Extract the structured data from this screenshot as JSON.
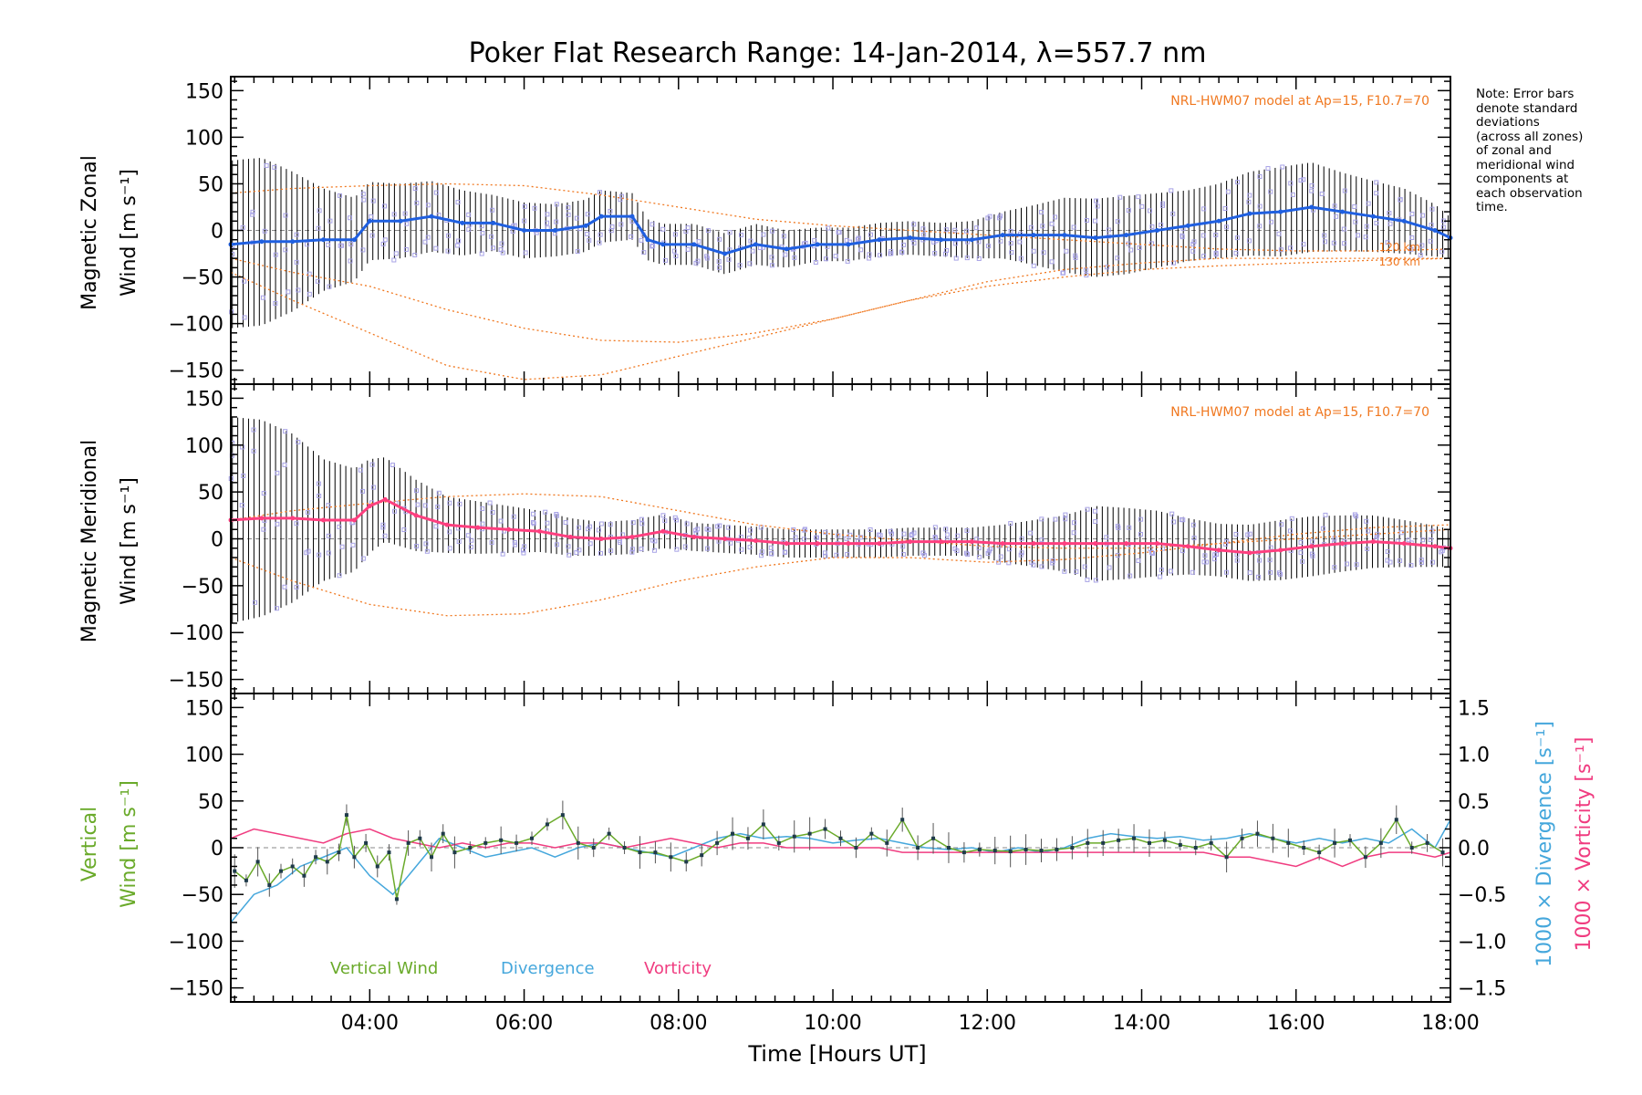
{
  "title": "Poker Flat Research Range: 14-Jan-2014, λ=557.7 nm",
  "note_lines": [
    "Note: Error bars",
    "denote standard",
    "deviations",
    "(across all zones)",
    "of zonal and",
    "meridional wind",
    "components at",
    "each observation",
    "time."
  ],
  "xlabel": "Time [Hours UT]",
  "colors": {
    "zonal_mean": "#1f5fe0",
    "meridional_mean": "#ff3f7f",
    "vertical": "#6aaa2a",
    "divergence": "#45a7dc",
    "vorticity": "#f03c80",
    "model": "#f07820",
    "scatter": "#a8a3e6",
    "errorbar": "#000000"
  },
  "chart_data": [
    {
      "type": "line",
      "panel": "zonal",
      "title": "",
      "ylabel_line1": "Magnetic Zonal",
      "ylabel_line2": "Wind [m s⁻¹]",
      "xlim": [
        2.2,
        18.0
      ],
      "ylim": [
        -165,
        165
      ],
      "x_ticks": [
        4,
        6,
        8,
        10,
        12,
        14,
        16,
        18
      ],
      "x_tick_labels": [
        "04:00",
        "06:00",
        "08:00",
        "10:00",
        "12:00",
        "14:00",
        "16:00",
        "18:00"
      ],
      "y_ticks": [
        -150,
        -100,
        -50,
        0,
        50,
        100,
        150
      ],
      "y_tick_labels": [
        "−150",
        "−100",
        "−50",
        "0",
        "50",
        "100",
        "150"
      ],
      "annotation": "NRL-HWM07 model at Ap=15, F10.7=70",
      "model_curve_labels": [
        "120 km",
        "130 km"
      ],
      "series": [
        {
          "name": "",
          "role": "mean",
          "x": [
            2.2,
            2.6,
            3.0,
            3.4,
            3.8,
            4.0,
            4.4,
            4.8,
            5.2,
            5.6,
            6.0,
            6.4,
            6.8,
            7.0,
            7.4,
            7.6,
            7.8,
            8.2,
            8.6,
            9.0,
            9.4,
            9.8,
            10.2,
            10.6,
            11.0,
            11.4,
            11.8,
            12.2,
            12.6,
            13.0,
            13.4,
            13.8,
            14.2,
            14.6,
            15.0,
            15.4,
            15.8,
            16.2,
            16.6,
            17.0,
            17.4,
            17.8,
            18.0
          ],
          "y": [
            -15,
            -12,
            -12,
            -10,
            -10,
            10,
            10,
            15,
            8,
            8,
            0,
            0,
            5,
            15,
            15,
            -10,
            -15,
            -15,
            -25,
            -15,
            -20,
            -15,
            -15,
            -10,
            -8,
            -10,
            -10,
            -5,
            -5,
            -5,
            -8,
            -5,
            0,
            5,
            10,
            18,
            20,
            25,
            20,
            15,
            10,
            0,
            -8
          ],
          "spread": [
            90,
            90,
            75,
            55,
            45,
            42,
            40,
            38,
            35,
            30,
            30,
            28,
            28,
            28,
            25,
            22,
            22,
            22,
            22,
            22,
            20,
            18,
            18,
            18,
            18,
            18,
            20,
            25,
            32,
            40,
            42,
            42,
            40,
            38,
            40,
            45,
            48,
            48,
            42,
            38,
            35,
            28,
            22
          ]
        },
        {
          "name": "",
          "role": "model-120km",
          "x": [
            2.2,
            3.0,
            4.0,
            5.0,
            6.0,
            7.0,
            8.0,
            9.0,
            10.0,
            11.0,
            12.0,
            13.0,
            14.0,
            15.0,
            16.0,
            17.0,
            18.0
          ],
          "y": [
            -30,
            -45,
            -60,
            -85,
            -105,
            -118,
            -120,
            -110,
            -95,
            -75,
            -55,
            -42,
            -35,
            -30,
            -30,
            -30,
            -30
          ]
        },
        {
          "name": "",
          "role": "model-130km",
          "x": [
            2.2,
            3.0,
            4.0,
            5.0,
            6.0,
            7.0,
            8.0,
            9.0,
            10.0,
            11.0,
            12.0,
            13.0,
            14.0,
            15.0,
            16.0,
            17.0,
            18.0
          ],
          "y": [
            -45,
            -75,
            -110,
            -145,
            -160,
            -155,
            -135,
            -115,
            -95,
            -75,
            -60,
            -50,
            -42,
            -38,
            -35,
            -32,
            -30
          ]
        },
        {
          "name": "",
          "role": "model-upper",
          "x": [
            2.2,
            3.0,
            4.0,
            5.0,
            6.0,
            7.0,
            8.0,
            9.0,
            10.0,
            11.0,
            12.0,
            13.0,
            14.0,
            15.0,
            16.0,
            17.0,
            18.0
          ],
          "y": [
            40,
            45,
            48,
            50,
            48,
            38,
            25,
            12,
            5,
            0,
            -5,
            -10,
            -15,
            -20,
            -22,
            -22,
            -20
          ]
        }
      ]
    },
    {
      "type": "line",
      "panel": "meridional",
      "title": "",
      "ylabel_line1": "Magnetic Meridional",
      "ylabel_line2": "Wind [m s⁻¹]",
      "xlim": [
        2.2,
        18.0
      ],
      "ylim": [
        -165,
        165
      ],
      "y_ticks": [
        -150,
        -100,
        -50,
        0,
        50,
        100,
        150
      ],
      "y_tick_labels": [
        "−150",
        "−100",
        "−50",
        "0",
        "50",
        "100",
        "150"
      ],
      "annotation": "NRL-HWM07 model at Ap=15, F10.7=70",
      "series": [
        {
          "name": "",
          "role": "mean",
          "x": [
            2.2,
            2.6,
            3.0,
            3.4,
            3.8,
            4.0,
            4.2,
            4.6,
            5.0,
            5.4,
            5.8,
            6.2,
            6.6,
            7.0,
            7.4,
            7.8,
            8.2,
            8.6,
            9.0,
            9.4,
            9.8,
            10.2,
            10.6,
            11.0,
            11.4,
            11.8,
            12.2,
            12.6,
            13.0,
            13.4,
            13.8,
            14.2,
            14.6,
            15.0,
            15.4,
            15.8,
            16.2,
            16.6,
            17.0,
            17.4,
            17.8,
            18.0
          ],
          "y": [
            20,
            22,
            22,
            20,
            20,
            35,
            42,
            25,
            15,
            12,
            10,
            8,
            2,
            0,
            2,
            8,
            2,
            0,
            -2,
            -5,
            -5,
            -5,
            -5,
            -3,
            -3,
            -3,
            -5,
            -5,
            -5,
            -5,
            -5,
            -5,
            -8,
            -12,
            -15,
            -12,
            -8,
            -5,
            -3,
            -5,
            -8,
            -10
          ],
          "spread": [
            110,
            105,
            90,
            65,
            55,
            50,
            45,
            38,
            30,
            28,
            25,
            22,
            20,
            18,
            18,
            18,
            15,
            15,
            15,
            15,
            15,
            15,
            15,
            15,
            15,
            15,
            20,
            25,
            30,
            40,
            38,
            35,
            30,
            28,
            30,
            32,
            32,
            30,
            28,
            25,
            22,
            20
          ]
        },
        {
          "name": "",
          "role": "model-lower",
          "x": [
            2.2,
            3.0,
            4.0,
            5.0,
            6.0,
            7.0,
            8.0,
            9.0,
            10.0,
            11.0,
            12.0,
            13.0,
            14.0,
            15.0,
            16.0,
            17.0,
            18.0
          ],
          "y": [
            -20,
            -45,
            -70,
            -82,
            -80,
            -65,
            -45,
            -30,
            -20,
            -20,
            -25,
            -22,
            -15,
            -5,
            5,
            12,
            15
          ]
        },
        {
          "name": "",
          "role": "model-upper",
          "x": [
            2.2,
            3.0,
            4.0,
            5.0,
            6.0,
            7.0,
            8.0,
            9.0,
            10.0,
            11.0,
            12.0,
            13.0,
            14.0,
            15.0,
            16.0,
            17.0,
            18.0
          ],
          "y": [
            20,
            30,
            38,
            45,
            48,
            45,
            30,
            15,
            5,
            -2,
            -8,
            -10,
            -10,
            -5,
            0,
            5,
            10
          ]
        }
      ]
    },
    {
      "type": "line",
      "panel": "vertical",
      "title": "",
      "ylabel_line1": "Vertical",
      "ylabel_line2_a": "Wind ",
      "ylabel_line2_b": "[m s⁻¹]",
      "right_label_div_a": "1000 × Divergence ",
      "right_label_div_b": "[s⁻¹]",
      "right_label_vort_a": "1000 × Vorticity ",
      "right_label_vort_b": "[s⁻¹]",
      "xlim": [
        2.2,
        18.0
      ],
      "ylim": [
        -165,
        165
      ],
      "y2lim": [
        -1.65,
        1.65
      ],
      "y_ticks": [
        -150,
        -100,
        -50,
        0,
        50,
        100,
        150
      ],
      "y_tick_labels": [
        "−150",
        "−100",
        "−50",
        "0",
        "50",
        "100",
        "150"
      ],
      "y2_ticks": [
        -1.5,
        -1.0,
        -0.5,
        0.0,
        0.5,
        1.0,
        1.5
      ],
      "y2_tick_labels": [
        "−1.5",
        "−1.0",
        "−0.5",
        "0.0",
        "0.5",
        "1.0",
        "1.5"
      ],
      "legend": [
        "Vertical Wind",
        "Divergence",
        "Vorticity"
      ],
      "series": [
        {
          "name": "Vertical Wind",
          "axis": "left",
          "x": [
            2.25,
            2.4,
            2.55,
            2.7,
            2.85,
            3.0,
            3.15,
            3.3,
            3.45,
            3.6,
            3.7,
            3.8,
            3.95,
            4.1,
            4.25,
            4.35,
            4.5,
            4.65,
            4.8,
            4.95,
            5.1,
            5.3,
            5.5,
            5.7,
            5.9,
            6.1,
            6.3,
            6.5,
            6.7,
            6.9,
            7.1,
            7.3,
            7.5,
            7.7,
            7.9,
            8.1,
            8.3,
            8.5,
            8.7,
            8.9,
            9.1,
            9.3,
            9.5,
            9.7,
            9.9,
            10.1,
            10.3,
            10.5,
            10.7,
            10.9,
            11.1,
            11.3,
            11.5,
            11.7,
            11.9,
            12.1,
            12.3,
            12.5,
            12.7,
            12.9,
            13.1,
            13.3,
            13.5,
            13.7,
            13.9,
            14.1,
            14.3,
            14.5,
            14.7,
            14.9,
            15.1,
            15.3,
            15.5,
            15.7,
            15.9,
            16.1,
            16.3,
            16.5,
            16.7,
            16.9,
            17.1,
            17.3,
            17.5,
            17.7,
            17.9
          ],
          "y": [
            -25,
            -35,
            -15,
            -40,
            -25,
            -20,
            -30,
            -10,
            -15,
            -5,
            35,
            -10,
            5,
            -20,
            -5,
            -55,
            5,
            10,
            -10,
            15,
            -5,
            0,
            5,
            8,
            5,
            10,
            25,
            35,
            5,
            0,
            15,
            0,
            -5,
            -5,
            -10,
            -15,
            -8,
            5,
            15,
            10,
            25,
            5,
            12,
            15,
            20,
            10,
            0,
            15,
            5,
            30,
            0,
            10,
            0,
            -5,
            -2,
            -3,
            -4,
            -2,
            -3,
            -2,
            0,
            5,
            5,
            8,
            10,
            5,
            8,
            3,
            0,
            5,
            -10,
            10,
            15,
            10,
            5,
            0,
            -5,
            5,
            8,
            -10,
            5,
            30,
            0,
            5,
            -5
          ]
        },
        {
          "name": "Divergence",
          "axis": "right",
          "x": [
            2.2,
            2.5,
            2.8,
            3.1,
            3.4,
            3.7,
            4.0,
            4.3,
            4.6,
            4.9,
            5.2,
            5.5,
            5.8,
            6.1,
            6.4,
            6.7,
            7.0,
            7.3,
            7.6,
            7.9,
            8.2,
            8.5,
            8.8,
            9.1,
            9.4,
            9.7,
            10.0,
            10.3,
            10.6,
            10.9,
            11.2,
            11.5,
            11.8,
            12.1,
            12.4,
            12.7,
            13.0,
            13.3,
            13.6,
            13.9,
            14.2,
            14.5,
            14.8,
            15.1,
            15.4,
            15.7,
            16.0,
            16.3,
            16.6,
            16.9,
            17.2,
            17.5,
            17.8,
            18.0
          ],
          "y": [
            -0.8,
            -0.5,
            -0.4,
            -0.2,
            -0.1,
            0.0,
            -0.3,
            -0.5,
            -0.2,
            0.1,
            0.0,
            -0.1,
            -0.05,
            0.0,
            -0.1,
            0.0,
            0.05,
            0.0,
            -0.05,
            -0.1,
            0.0,
            0.1,
            0.15,
            0.1,
            0.12,
            0.1,
            0.05,
            0.08,
            0.1,
            0.05,
            0.0,
            -0.02,
            0.0,
            -0.05,
            0.0,
            -0.05,
            0.0,
            0.1,
            0.15,
            0.12,
            0.1,
            0.12,
            0.08,
            0.1,
            0.15,
            0.1,
            0.05,
            0.1,
            0.05,
            0.1,
            0.05,
            0.2,
            0.0,
            0.3
          ]
        },
        {
          "name": "Vorticity",
          "axis": "right",
          "x": [
            2.2,
            2.5,
            2.8,
            3.1,
            3.4,
            3.7,
            4.0,
            4.3,
            4.6,
            4.9,
            5.2,
            5.5,
            5.8,
            6.1,
            6.4,
            6.7,
            7.0,
            7.3,
            7.6,
            7.9,
            8.2,
            8.5,
            8.8,
            9.1,
            9.4,
            9.7,
            10.0,
            10.3,
            10.6,
            10.9,
            11.2,
            11.5,
            11.8,
            12.1,
            12.4,
            12.7,
            13.0,
            13.3,
            13.6,
            13.9,
            14.2,
            14.5,
            14.8,
            15.1,
            15.4,
            15.7,
            16.0,
            16.3,
            16.6,
            16.9,
            17.2,
            17.5,
            17.8,
            18.0
          ],
          "y": [
            0.1,
            0.2,
            0.15,
            0.1,
            0.05,
            0.15,
            0.2,
            0.1,
            0.05,
            0.0,
            0.05,
            0.0,
            0.05,
            0.05,
            0.0,
            0.05,
            0.05,
            0.0,
            0.05,
            0.1,
            0.05,
            0.0,
            0.05,
            0.05,
            0.0,
            0.0,
            0.0,
            0.0,
            0.0,
            -0.05,
            -0.05,
            -0.05,
            -0.05,
            -0.05,
            -0.05,
            -0.05,
            -0.05,
            -0.05,
            -0.05,
            -0.05,
            -0.05,
            -0.05,
            -0.05,
            -0.1,
            -0.1,
            -0.15,
            -0.2,
            -0.1,
            -0.2,
            -0.1,
            -0.05,
            -0.05,
            -0.1,
            -0.05
          ]
        }
      ]
    }
  ]
}
